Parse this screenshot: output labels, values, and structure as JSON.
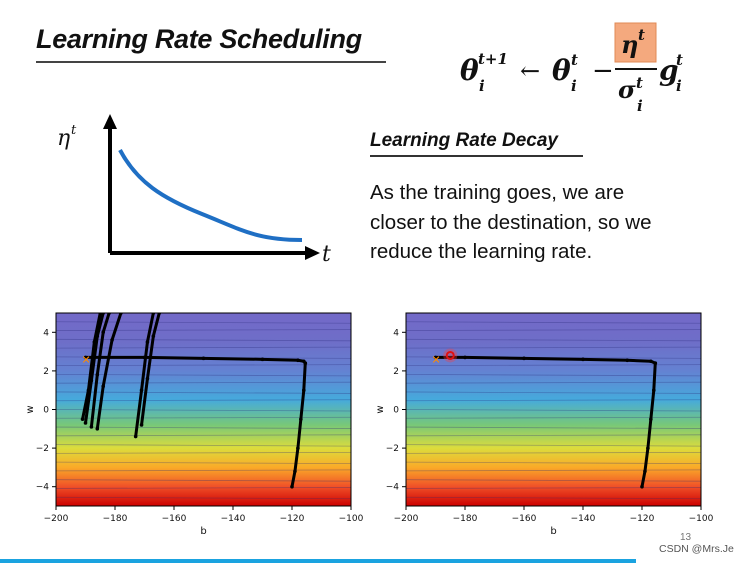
{
  "slide": {
    "title": "Learning Rate Scheduling",
    "formula": {
      "lhs": "θ",
      "lhs_sup": "t+1",
      "lhs_sub": "i",
      "arrow": "←",
      "theta": "θ",
      "theta_sup": "t",
      "theta_sub": "i",
      "minus": "−",
      "numerator": "η",
      "numerator_sup": "t",
      "denominator": "σ",
      "denominator_sup": "t",
      "denominator_sub": "i",
      "g": "g",
      "g_sup": "t",
      "g_sub": "i",
      "highlight_color": "#f4a97e"
    },
    "curve_plot": {
      "y_label": "η",
      "y_label_sup": "t",
      "x_label": "t",
      "curve_color": "#1f6fc4"
    },
    "decay_title": "Learning Rate Decay",
    "decay_lines": [
      "As the training goes, we are",
      "closer to the destination, so we",
      "reduce the learning rate."
    ],
    "page_number": "13",
    "watermark": "CSDN @Mrs.Je",
    "accent_color": "#1aa3e0"
  },
  "chart_data": [
    {
      "type": "line",
      "title": "",
      "xlabel": "b",
      "ylabel": "w",
      "xlim": [
        -200,
        -100
      ],
      "ylim": [
        -5,
        5
      ],
      "xticks": [
        -200,
        -180,
        -160,
        -140,
        -120,
        -100
      ],
      "yticks": [
        -4,
        -2,
        0,
        2,
        4
      ],
      "start": [
        -190,
        2.6
      ],
      "target": [
        -120,
        -4
      ],
      "series": [
        {
          "name": "path-horizontal",
          "x": [
            -190,
            -170,
            -150,
            -130,
            -118,
            -116,
            -115.5
          ],
          "y": [
            2.7,
            2.7,
            2.65,
            2.6,
            2.55,
            2.5,
            2.4
          ]
        },
        {
          "name": "path-descent",
          "x": [
            -115.5,
            -116,
            -117,
            -118,
            -119,
            -120
          ],
          "y": [
            2.4,
            1.0,
            -0.5,
            -2.0,
            -3.2,
            -4.0
          ]
        },
        {
          "name": "oscillation-1",
          "x": [
            -191,
            -189,
            -187,
            -185
          ],
          "y": [
            -0.5,
            1.0,
            3.5,
            5
          ]
        },
        {
          "name": "oscillation-2",
          "x": [
            -190,
            -188,
            -186,
            -184
          ],
          "y": [
            -0.7,
            1.5,
            3.8,
            5
          ]
        },
        {
          "name": "oscillation-3",
          "x": [
            -188,
            -186,
            -184,
            -182
          ],
          "y": [
            -0.9,
            1.8,
            4.0,
            5
          ]
        },
        {
          "name": "oscillation-4",
          "x": [
            -186,
            -184,
            -181,
            -178
          ],
          "y": [
            -1.0,
            1.2,
            3.6,
            5
          ]
        },
        {
          "name": "oscillation-5",
          "x": [
            -173,
            -171,
            -169,
            -167
          ],
          "y": [
            -1.4,
            1.0,
            3.5,
            5
          ]
        },
        {
          "name": "oscillation-6",
          "x": [
            -171,
            -169,
            -167,
            -165
          ],
          "y": [
            -0.8,
            1.6,
            3.8,
            5
          ]
        }
      ]
    },
    {
      "type": "line",
      "title": "",
      "xlabel": "b",
      "ylabel": "w",
      "xlim": [
        -200,
        -100
      ],
      "ylim": [
        -5,
        5
      ],
      "xticks": [
        -200,
        -180,
        -160,
        -140,
        -120,
        -100
      ],
      "yticks": [
        -4,
        -2,
        0,
        2,
        4
      ],
      "start": [
        -190,
        2.6
      ],
      "target": [
        -185,
        2.8
      ],
      "series": [
        {
          "name": "path-horizontal",
          "x": [
            -190,
            -180,
            -160,
            -140,
            -125,
            -117,
            -115.5
          ],
          "y": [
            2.7,
            2.7,
            2.65,
            2.6,
            2.55,
            2.5,
            2.4
          ]
        },
        {
          "name": "path-descent",
          "x": [
            -115.5,
            -116,
            -117,
            -118,
            -119,
            -120
          ],
          "y": [
            2.4,
            1.0,
            -0.5,
            -2.0,
            -3.2,
            -4.0
          ]
        }
      ]
    }
  ]
}
